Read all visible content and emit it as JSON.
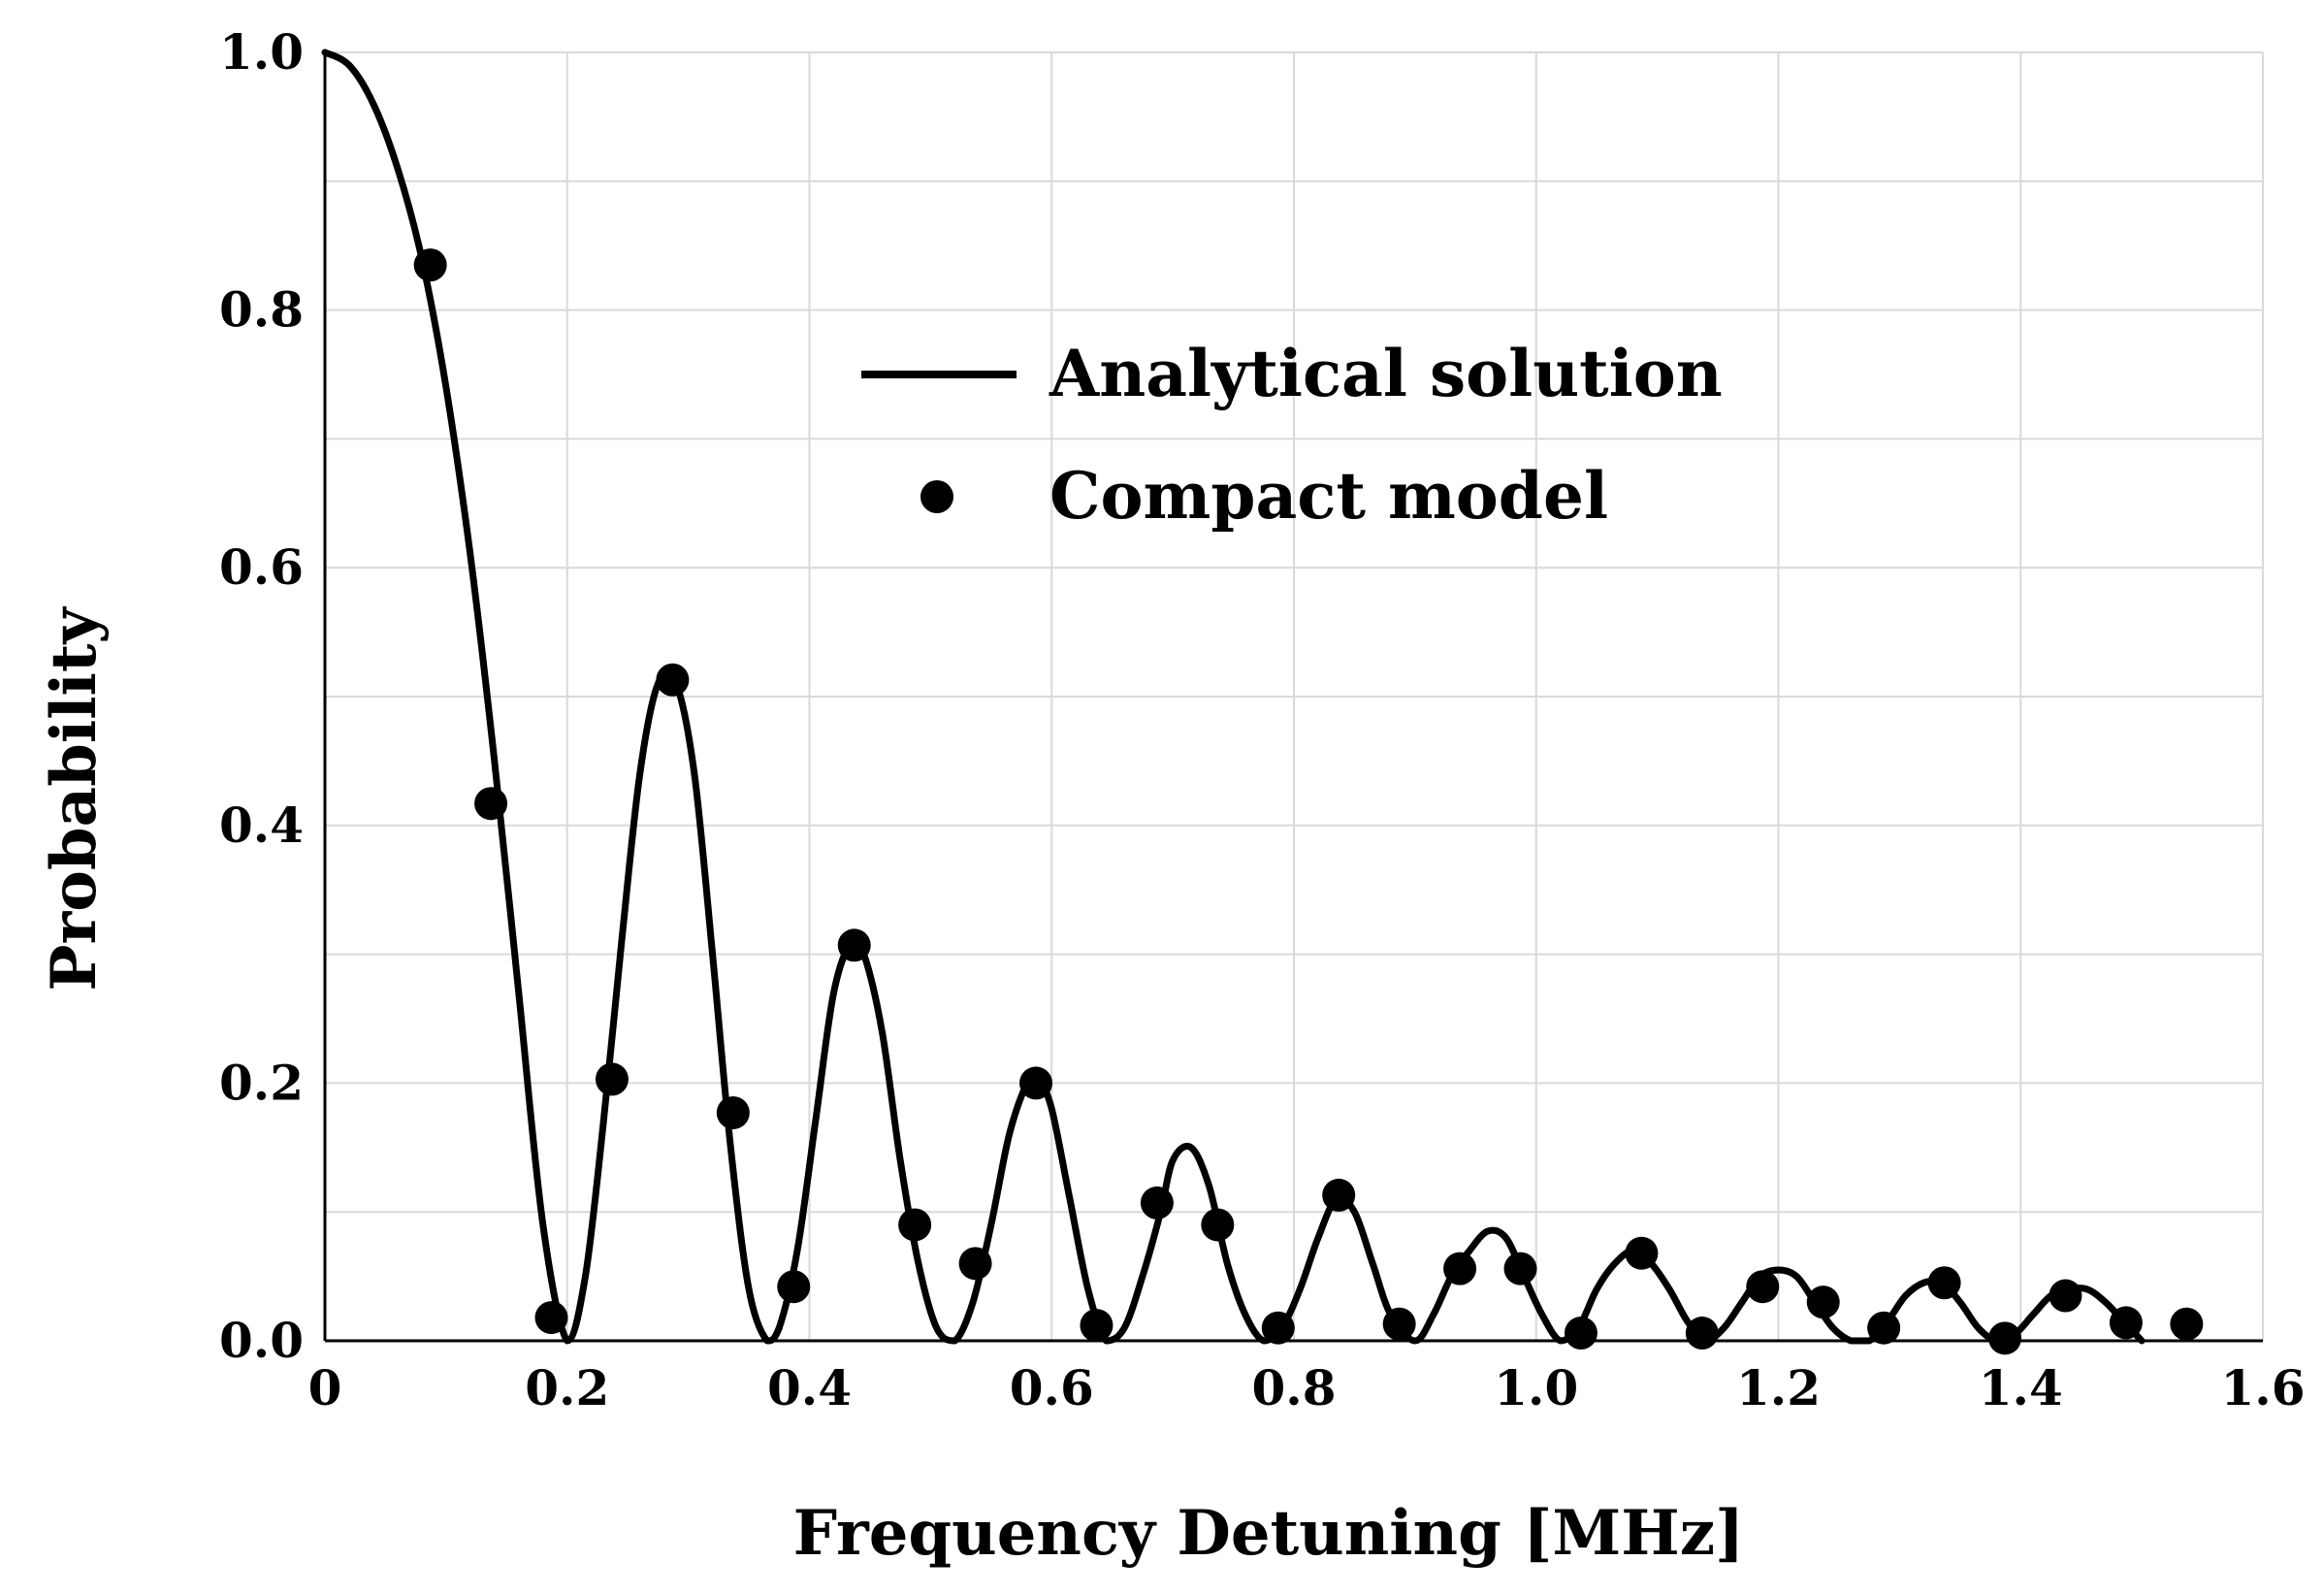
{
  "chart_data": {
    "type": "line",
    "title": "",
    "xlabel": "Frequency Detuning [MHz]",
    "ylabel": "Probability",
    "xlim": [
      0,
      1.6
    ],
    "ylim": [
      0,
      1.0
    ],
    "x_ticks": [
      0,
      0.2,
      0.4,
      0.6,
      0.8,
      1.0,
      1.2,
      1.4,
      1.6
    ],
    "x_tick_labels": [
      "0",
      "0.2",
      "0.4",
      "0.6",
      "0.8",
      "1.0",
      "1.2",
      "1.4",
      "1.6"
    ],
    "y_ticks": [
      0,
      0.2,
      0.4,
      0.6,
      0.8,
      1.0
    ],
    "y_tick_labels": [
      "0.0",
      "0.2",
      "0.4",
      "0.6",
      "0.8",
      "1.0"
    ],
    "y_minor_gridlines": [
      0.1,
      0.3,
      0.5,
      0.7,
      0.9
    ],
    "grid": true,
    "legend_position": "upper-middle",
    "series": [
      {
        "name": "Analytical solution",
        "style": "line",
        "color": "#000000",
        "x": [
          0,
          0.02,
          0.04,
          0.06,
          0.08,
          0.1,
          0.12,
          0.14,
          0.16,
          0.18,
          0.2,
          0.215,
          0.23,
          0.245,
          0.26,
          0.275,
          0.29,
          0.305,
          0.32,
          0.335,
          0.35,
          0.365,
          0.375,
          0.39,
          0.405,
          0.42,
          0.435,
          0.445,
          0.46,
          0.475,
          0.49,
          0.505,
          0.52,
          0.535,
          0.55,
          0.565,
          0.58,
          0.59,
          0.6,
          0.615,
          0.63,
          0.645,
          0.66,
          0.675,
          0.69,
          0.7,
          0.715,
          0.73,
          0.745,
          0.76,
          0.775,
          0.79,
          0.805,
          0.82,
          0.835,
          0.85,
          0.865,
          0.88,
          0.9,
          0.915,
          0.93,
          0.945,
          0.96,
          0.975,
          0.99,
          1.005,
          1.02,
          1.035,
          1.05,
          1.065,
          1.08,
          1.095,
          1.11,
          1.125,
          1.14,
          1.155,
          1.17,
          1.185,
          1.2,
          1.215,
          1.23,
          1.245,
          1.26,
          1.275,
          1.29,
          1.305,
          1.32,
          1.335,
          1.35,
          1.365,
          1.38,
          1.395,
          1.41,
          1.425,
          1.44,
          1.455,
          1.47,
          1.485,
          1.5
        ],
        "y": [
          1.0,
          0.99,
          0.96,
          0.91,
          0.84,
          0.74,
          0.61,
          0.45,
          0.27,
          0.09,
          0.0,
          0.05,
          0.17,
          0.31,
          0.44,
          0.51,
          0.51,
          0.44,
          0.3,
          0.15,
          0.04,
          0.0,
          0.01,
          0.07,
          0.17,
          0.27,
          0.31,
          0.3,
          0.24,
          0.14,
          0.06,
          0.01,
          0.0,
          0.03,
          0.09,
          0.16,
          0.2,
          0.2,
          0.18,
          0.11,
          0.04,
          0.0,
          0.01,
          0.05,
          0.1,
          0.14,
          0.15,
          0.12,
          0.06,
          0.02,
          0.0,
          0.01,
          0.04,
          0.08,
          0.11,
          0.1,
          0.06,
          0.02,
          0.0,
          0.02,
          0.05,
          0.07,
          0.085,
          0.08,
          0.05,
          0.02,
          0.0,
          0.01,
          0.04,
          0.06,
          0.07,
          0.06,
          0.04,
          0.015,
          0.0,
          0.01,
          0.03,
          0.05,
          0.055,
          0.05,
          0.03,
          0.01,
          0.0,
          0.0,
          0.015,
          0.035,
          0.045,
          0.045,
          0.03,
          0.01,
          0.0,
          0.005,
          0.02,
          0.035,
          0.04,
          0.04,
          0.03,
          0.015,
          0.0
        ]
      },
      {
        "name": "Compact model",
        "style": "scatter",
        "color": "#000000",
        "x": [
          0.087,
          0.137,
          0.187,
          0.237,
          0.287,
          0.337,
          0.387,
          0.437,
          0.487,
          0.537,
          0.587,
          0.637,
          0.687,
          0.737,
          0.787,
          0.837,
          0.887,
          0.937,
          0.987,
          1.037,
          1.087,
          1.137,
          1.187,
          1.237,
          1.287,
          1.337,
          1.387,
          1.437,
          1.487,
          1.537
        ],
        "y": [
          0.835,
          0.417,
          0.018,
          0.203,
          0.513,
          0.177,
          0.042,
          0.307,
          0.09,
          0.06,
          0.2,
          0.012,
          0.107,
          0.09,
          0.01,
          0.113,
          0.013,
          0.056,
          0.056,
          0.006,
          0.068,
          0.006,
          0.042,
          0.03,
          0.01,
          0.045,
          0.002,
          0.035,
          0.014,
          0.013
        ]
      }
    ]
  }
}
